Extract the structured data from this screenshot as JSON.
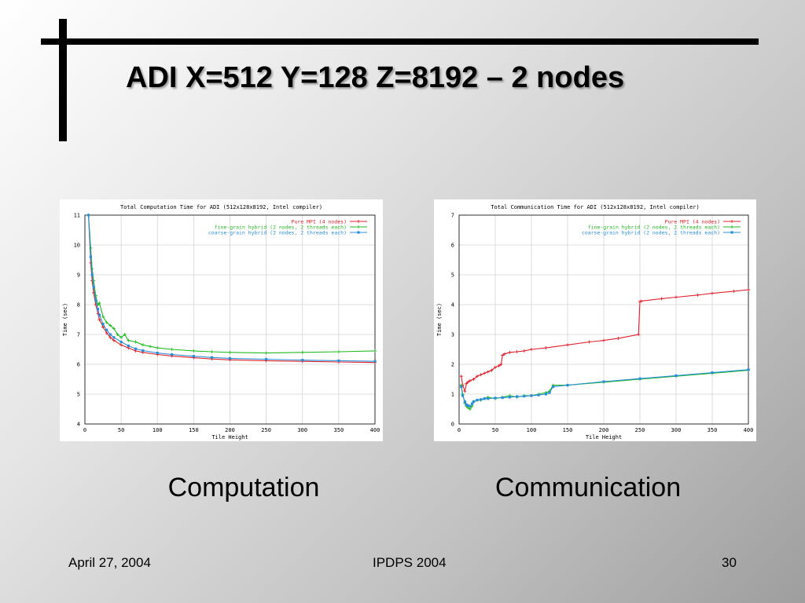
{
  "slide": {
    "title": "ADI X=512 Y=128 Z=8192 – 2 nodes",
    "captions": {
      "left": "Computation",
      "right": "Communication"
    },
    "footer": {
      "date": "April 27, 2004",
      "conference": "IPDPS 2004",
      "page": "30"
    }
  },
  "chart_data": [
    {
      "type": "line",
      "title": "Total Computation Time for ADI (512x128x8192, Intel compiler)",
      "xlabel": "Tile Height",
      "ylabel": "Time (sec)",
      "xlim": [
        0,
        400
      ],
      "ylim": [
        4,
        11
      ],
      "xticks": [
        0,
        50,
        100,
        150,
        200,
        250,
        300,
        350,
        400
      ],
      "yticks": [
        4,
        5,
        6,
        7,
        8,
        9,
        10,
        11
      ],
      "grid": true,
      "legend_position": "top-right",
      "series": [
        {
          "name": "Pure MPI (4 nodes)",
          "color": "#e0202a",
          "marker": "plus",
          "x": [
            5,
            8,
            10,
            12,
            15,
            18,
            20,
            25,
            30,
            35,
            40,
            50,
            60,
            70,
            80,
            100,
            120,
            150,
            175,
            200,
            250,
            300,
            350,
            400
          ],
          "y": [
            11,
            9.4,
            8.8,
            8.4,
            8.0,
            7.7,
            7.5,
            7.25,
            7.05,
            6.9,
            6.8,
            6.65,
            6.55,
            6.45,
            6.4,
            6.33,
            6.28,
            6.22,
            6.18,
            6.15,
            6.12,
            6.1,
            6.08,
            6.06
          ]
        },
        {
          "name": "fine-grain hybrid (2 nodes, 2 threads each)",
          "color": "#22bb22",
          "marker": "plus",
          "x": [
            5,
            8,
            10,
            12,
            15,
            18,
            20,
            25,
            30,
            35,
            40,
            45,
            50,
            55,
            60,
            70,
            80,
            90,
            100,
            120,
            150,
            175,
            200,
            250,
            300,
            350,
            400
          ],
          "y": [
            11,
            9.9,
            9.2,
            8.8,
            8.3,
            8.0,
            8.05,
            7.6,
            7.4,
            7.3,
            7.2,
            7.0,
            6.9,
            7.0,
            6.8,
            6.75,
            6.65,
            6.6,
            6.55,
            6.5,
            6.45,
            6.42,
            6.4,
            6.38,
            6.4,
            6.42,
            6.45
          ]
        },
        {
          "name": "coarse-grain hybrid (2 nodes, 2 threads each)",
          "color": "#2a8fd8",
          "marker": "square",
          "x": [
            5,
            8,
            10,
            12,
            15,
            18,
            20,
            25,
            30,
            35,
            40,
            50,
            60,
            70,
            80,
            100,
            120,
            150,
            175,
            200,
            250,
            300,
            350,
            400
          ],
          "y": [
            11,
            9.6,
            9.0,
            8.6,
            8.15,
            7.85,
            7.65,
            7.35,
            7.15,
            7.0,
            6.9,
            6.75,
            6.62,
            6.52,
            6.46,
            6.38,
            6.33,
            6.27,
            6.23,
            6.2,
            6.17,
            6.14,
            6.12,
            6.1
          ]
        }
      ]
    },
    {
      "type": "line",
      "title": "Total Communication Time for ADI (512x128x8192, Intel compiler)",
      "xlabel": "Tile Height",
      "ylabel": "Time (sec)",
      "xlim": [
        0,
        400
      ],
      "ylim": [
        0,
        7
      ],
      "xticks": [
        0,
        50,
        100,
        150,
        200,
        250,
        300,
        350,
        400
      ],
      "yticks": [
        0,
        1,
        2,
        3,
        4,
        5,
        6,
        7
      ],
      "grid": true,
      "legend_position": "top-right",
      "series": [
        {
          "name": "Pure MPI (4 nodes)",
          "color": "#e0202a",
          "marker": "plus",
          "x": [
            3,
            5,
            8,
            10,
            12,
            15,
            20,
            25,
            30,
            35,
            40,
            45,
            50,
            55,
            58,
            60,
            63,
            70,
            80,
            90,
            100,
            120,
            150,
            180,
            200,
            220,
            248,
            250,
            252,
            280,
            300,
            330,
            350,
            380,
            400
          ],
          "y": [
            1.6,
            1.3,
            1.1,
            1.35,
            1.4,
            1.45,
            1.5,
            1.6,
            1.65,
            1.7,
            1.75,
            1.8,
            1.9,
            1.95,
            2.0,
            2.3,
            2.35,
            2.4,
            2.42,
            2.45,
            2.5,
            2.55,
            2.65,
            2.75,
            2.8,
            2.87,
            3.0,
            4.1,
            4.12,
            4.2,
            4.25,
            4.32,
            4.38,
            4.45,
            4.5
          ]
        },
        {
          "name": "fine-grain hybrid (2 nodes, 2 threads each)",
          "color": "#22bb22",
          "marker": "plus",
          "x": [
            3,
            5,
            8,
            10,
            12,
            15,
            18,
            20,
            25,
            30,
            35,
            40,
            50,
            60,
            70,
            80,
            90,
            100,
            110,
            120,
            125,
            130,
            150,
            200,
            250,
            300,
            350,
            400
          ],
          "y": [
            1.3,
            1.0,
            0.7,
            0.6,
            0.55,
            0.5,
            0.6,
            0.75,
            0.8,
            0.8,
            0.85,
            0.9,
            0.85,
            0.9,
            0.95,
            0.9,
            0.95,
            0.95,
            1.0,
            1.05,
            1.1,
            1.3,
            1.3,
            1.4,
            1.5,
            1.6,
            1.7,
            1.8
          ]
        },
        {
          "name": "coarse-grain hybrid (2 nodes, 2 threads each)",
          "color": "#2a8fd8",
          "marker": "square",
          "x": [
            3,
            5,
            8,
            10,
            12,
            15,
            18,
            20,
            25,
            30,
            35,
            40,
            50,
            60,
            70,
            80,
            90,
            100,
            110,
            120,
            125,
            130,
            150,
            200,
            250,
            300,
            350,
            400
          ],
          "y": [
            1.25,
            0.95,
            0.75,
            0.65,
            0.62,
            0.6,
            0.68,
            0.75,
            0.8,
            0.82,
            0.85,
            0.85,
            0.87,
            0.88,
            0.9,
            0.92,
            0.93,
            0.95,
            0.97,
            1.0,
            1.05,
            1.25,
            1.3,
            1.42,
            1.52,
            1.62,
            1.72,
            1.82
          ]
        }
      ]
    }
  ]
}
